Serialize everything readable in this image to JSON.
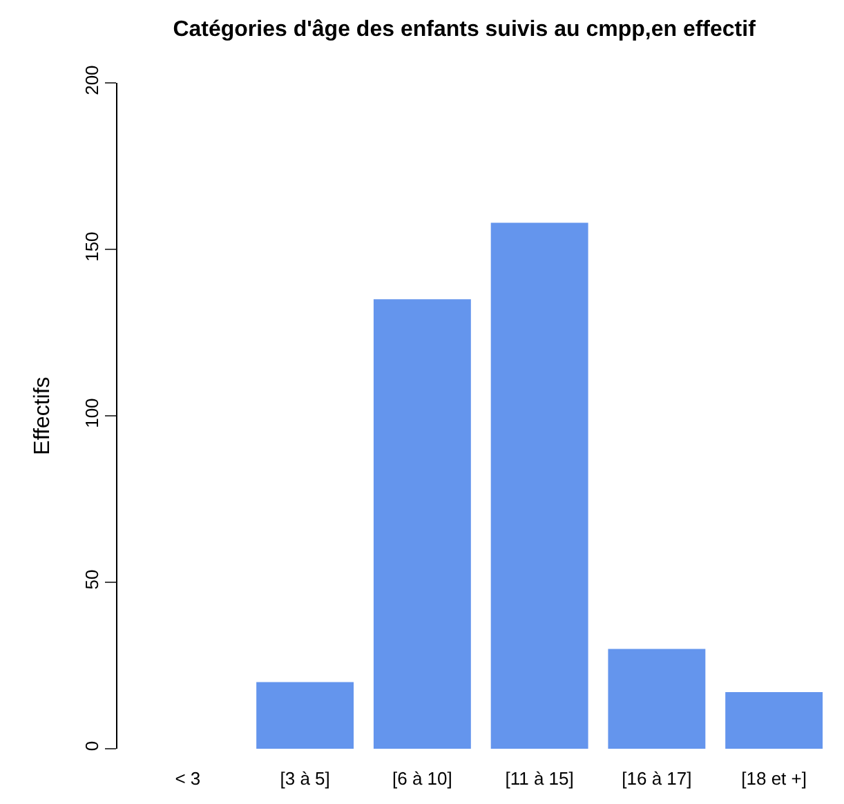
{
  "chart_data": {
    "type": "bar",
    "title": "Catégories d'âge des enfants suivis au cmpp,en effectif",
    "ylabel": "Effectifs",
    "categories": [
      "< 3",
      "[3 à 5]",
      "[6 à 10]",
      "[11 à 15]",
      "[16 à 17]",
      "[18 et +]"
    ],
    "values": [
      0,
      20,
      135,
      158,
      30,
      17
    ],
    "color": "#6495ed",
    "ylim": [
      0,
      200
    ],
    "yticks": [
      0,
      50,
      100,
      150,
      200
    ]
  }
}
